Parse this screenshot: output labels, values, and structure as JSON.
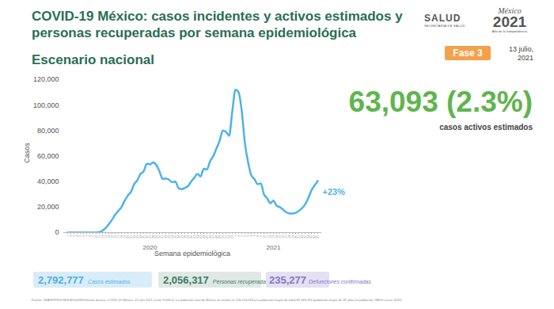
{
  "header": {
    "title": [
      "COVID-19 México: casos incidentes y activos estimados y",
      "personas recuperadas por semana epidemiológica"
    ],
    "subtitle": "Escenario nacional",
    "logo_salud": [
      "SALUD",
      "SECRETARÍA DE SALUD"
    ],
    "logo_mexico": [
      "México",
      "2021",
      "Año de la Independencia"
    ],
    "phase": "Fase 3",
    "date": "13 julio, 2021"
  },
  "active_cases": {
    "label": "63,093 (2.3%)",
    "caption": "casos activos estimados"
  },
  "chart_data": {
    "type": "line",
    "x_label": "Semana epidemiológica",
    "y_label": "Casos",
    "categories": [
      "1",
      "2",
      "3",
      "4",
      "5",
      "6",
      "7",
      "8",
      "9",
      "10",
      "11",
      "12",
      "13",
      "14",
      "15",
      "16",
      "17",
      "18",
      "19",
      "20",
      "21",
      "22",
      "23",
      "24",
      "25",
      "26",
      "27",
      "28",
      "29",
      "30",
      "31",
      "32",
      "33",
      "34",
      "35",
      "36",
      "37",
      "38",
      "39",
      "40",
      "41",
      "42",
      "43",
      "44",
      "45",
      "46",
      "47",
      "48",
      "49",
      "50",
      "51",
      "52",
      "53",
      "1",
      "2",
      "3",
      "4",
      "5",
      "6",
      "7",
      "8",
      "9",
      "10",
      "11",
      "12",
      "13",
      "14",
      "15",
      "16",
      "17",
      "18",
      "19",
      "20",
      "21",
      "22",
      "23",
      "24",
      "25",
      "26",
      "27"
    ],
    "values": [
      0,
      0,
      0,
      0,
      0,
      0,
      0,
      0,
      10,
      50,
      300,
      1500,
      3500,
      6500,
      10000,
      14000,
      17000,
      20000,
      25000,
      29000,
      32000,
      38000,
      41000,
      46000,
      48000,
      54000,
      53500,
      55000,
      53000,
      48000,
      42000,
      42500,
      41500,
      39500,
      40000,
      35000,
      34000,
      35000,
      36500,
      40000,
      43000,
      46000,
      44000,
      50000,
      49500,
      56000,
      60000,
      66000,
      72000,
      80000,
      79000,
      76000,
      95000,
      112000,
      110000,
      95000,
      70000,
      55000,
      45000,
      42000,
      38000,
      38500,
      30000,
      27000,
      23000,
      25000,
      21000,
      20000,
      18000,
      16000,
      15000,
      15000,
      15500,
      17000,
      19000,
      22000,
      27000,
      33000,
      37000,
      40500
    ],
    "color": "#4db3e6",
    "ylim": [
      0,
      120000
    ],
    "yticks": [
      0,
      {
        "value": 20000,
        "label": "20,000"
      },
      {
        "value": 40000,
        "label": "40,000"
      },
      {
        "value": 60000,
        "label": "60,000"
      },
      {
        "value": 80000,
        "label": "80,000"
      },
      {
        "value": 100000,
        "label": "100,000"
      },
      {
        "value": 120000,
        "label": "120,000"
      }
    ],
    "grid": false,
    "annotations": [
      {
        "text": "2020",
        "x": 26,
        "y": 0
      },
      {
        "text": "2021",
        "x": 65,
        "y": 0
      },
      {
        "text": "+23%",
        "x": 79,
        "y": 32000
      }
    ]
  },
  "summary": [
    {
      "value": "2,792,777",
      "label": "Casos estimados"
    },
    {
      "value": "2,056,317",
      "label": "Personas recuperadas"
    },
    {
      "value": "235,277",
      "label": "Defunciones confirmadas"
    }
  ],
  "source": "Fuente: SSA/SPPS/DGE/DIE/InDRE/Informe técnico. COVID-19 México. 13 julio 2021 (corte 9:00hrs). La población total de México se asume en 126,014,024 y la población mayor de edad 89,469,294 (población mayor de 18 años en población: INEGI censo 2020)."
}
